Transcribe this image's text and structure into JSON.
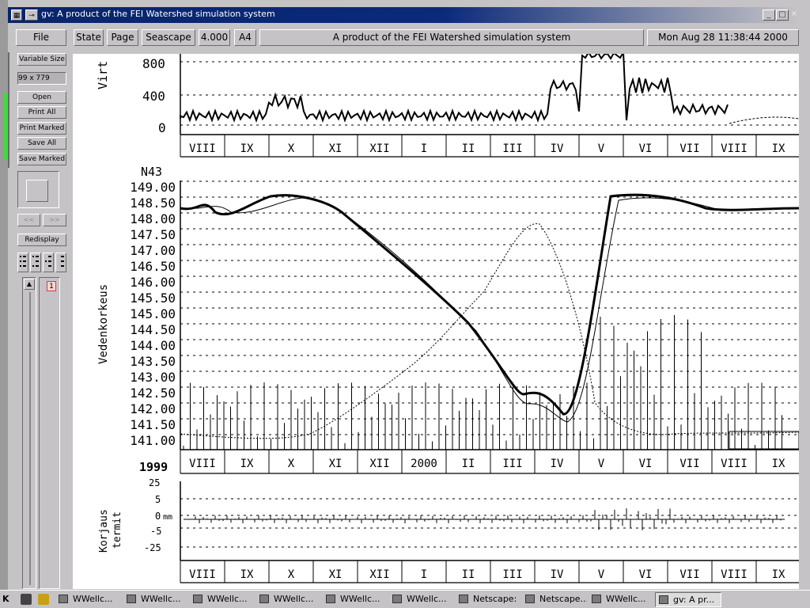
{
  "window": {
    "title": "gv: A product of the FEI Watershed simulation system",
    "controls": [
      "_",
      "□",
      "×"
    ]
  },
  "toolbar": {
    "file": "File",
    "state": "State",
    "page": "Page",
    "orientation": "Seascape",
    "magnification": "4.000",
    "media": "A4",
    "document_title": "A product of the FEI Watershed simulation system",
    "date": "Mon Aug 28 11:38:44 2000"
  },
  "sidebar": {
    "variable_size": "Variable Size",
    "size_value": "99 x 779",
    "open": "Open",
    "print_all": "Print All",
    "print_marked": "Print Marked",
    "save_all": "Save All",
    "save_marked": "Save Marked",
    "prev": "<<",
    "next": ">>",
    "redisplay": "Redisplay",
    "page_number": "1"
  },
  "plot": {
    "top_panel": {
      "ylabel": "Virt",
      "yticks": [
        "800",
        "400",
        "0"
      ],
      "months": [
        "VIII",
        "IX",
        "X",
        "XI",
        "XII",
        "I",
        "II",
        "III",
        "IV",
        "V",
        "VI",
        "VII",
        "VIII",
        "IX"
      ]
    },
    "main_panel": {
      "station": "N43",
      "ylabel": "Vedenkorkeus",
      "yticks": [
        "149.00",
        "148.50",
        "148.00",
        "147.50",
        "147.00",
        "146.50",
        "146.00",
        "145.50",
        "145.00",
        "144.50",
        "144.00",
        "143.50",
        "143.00",
        "142.50",
        "142.00",
        "141.50",
        "141.00"
      ],
      "months": [
        "VIII",
        "IX",
        "X",
        "XI",
        "XII",
        "2000",
        "II",
        "III",
        "IV",
        "V",
        "VI",
        "VII",
        "VIII",
        "IX"
      ],
      "year_start": "1999"
    },
    "bottom_panel": {
      "ylabel_line1": "Korjaus",
      "ylabel_line2": "termit",
      "yticks": [
        "25",
        "5",
        "0",
        "-5",
        "-25"
      ],
      "unit": "mm",
      "months": [
        "VIII",
        "IX",
        "X",
        "XI",
        "XII",
        "I",
        "II",
        "III",
        "IV",
        "V",
        "VI",
        "VII",
        "VIII",
        "IX"
      ]
    }
  },
  "taskbar": {
    "items": [
      {
        "label": "WWellc...",
        "active": false
      },
      {
        "label": "WWellc...",
        "active": false
      },
      {
        "label": "WWellc...",
        "active": false
      },
      {
        "label": "WWellc...",
        "active": false
      },
      {
        "label": "WWellc...",
        "active": false
      },
      {
        "label": "WWellc...",
        "active": false
      },
      {
        "label": "Netscape:",
        "active": false
      },
      {
        "label": "Netscape...",
        "active": false
      },
      {
        "label": "WWellc...",
        "active": false
      },
      {
        "label": "gv: A pr...",
        "active": true
      }
    ]
  }
}
